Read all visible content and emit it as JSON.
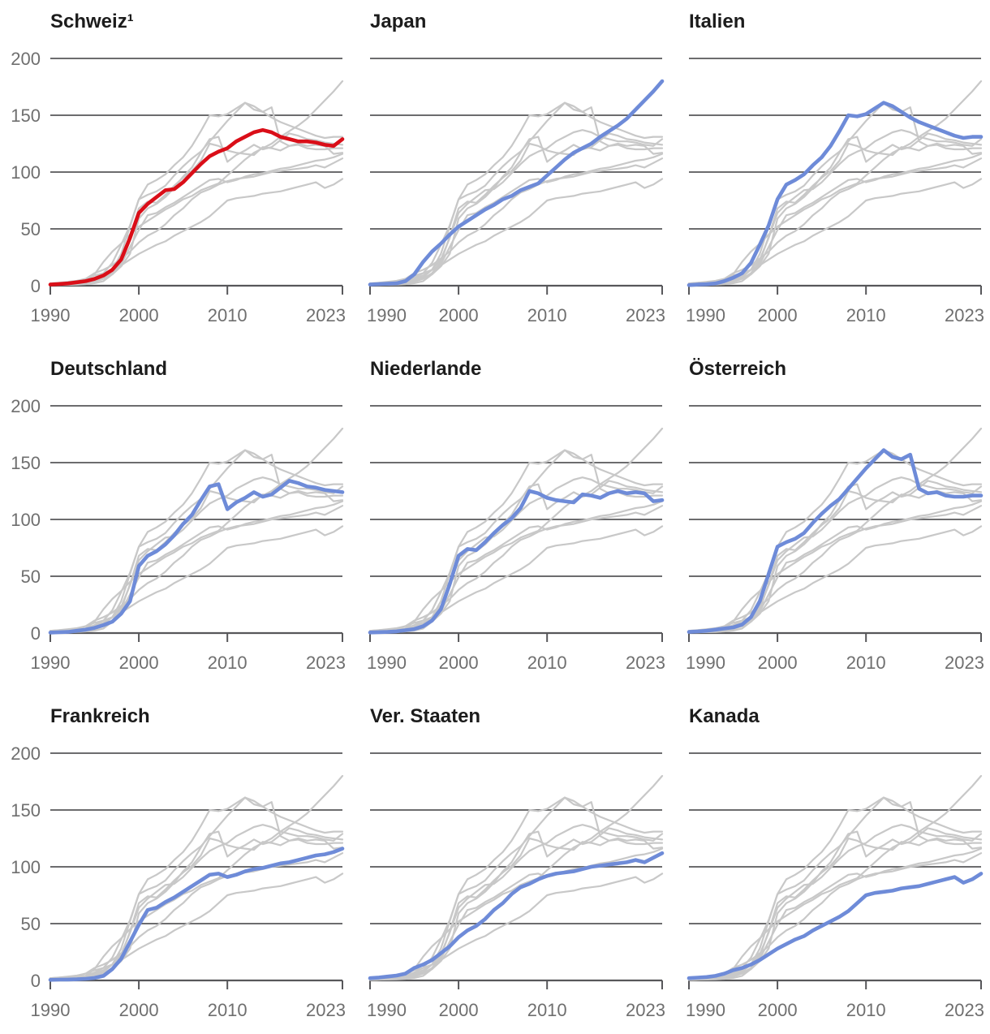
{
  "colors": {
    "highlight_red": "#da0e18",
    "highlight_blue": "#6e8bd8",
    "neighbor_gray": "#c8c8c8",
    "grid": "#57575a",
    "axis_label": "#6f6f6f",
    "title": "#1c1c1c",
    "background": "#ffffff"
  },
  "chart_data": {
    "type": "line",
    "layout": "small-multiples-3x3",
    "x_start": 1990,
    "x_end": 2023,
    "x_step": 1,
    "x_ticks": [
      1990,
      2000,
      2010,
      2023
    ],
    "ylim": [
      0,
      200
    ],
    "y_ticks": [
      0,
      50,
      100,
      150,
      200
    ],
    "grid": true,
    "legend": false,
    "panels": [
      {
        "title": "Schweiz¹",
        "highlight_id": "CH",
        "highlight_color": "red"
      },
      {
        "title": "Japan",
        "highlight_id": "JP",
        "highlight_color": "blue"
      },
      {
        "title": "Italien",
        "highlight_id": "IT",
        "highlight_color": "blue"
      },
      {
        "title": "Deutschland",
        "highlight_id": "DE",
        "highlight_color": "blue"
      },
      {
        "title": "Niederlande",
        "highlight_id": "NL",
        "highlight_color": "blue"
      },
      {
        "title": "Österreich",
        "highlight_id": "AT",
        "highlight_color": "blue"
      },
      {
        "title": "Frankreich",
        "highlight_id": "FR",
        "highlight_color": "blue"
      },
      {
        "title": "Ver. Staaten",
        "highlight_id": "US",
        "highlight_color": "blue"
      },
      {
        "title": "Kanada",
        "highlight_id": "CA",
        "highlight_color": "blue"
      }
    ],
    "series": [
      {
        "id": "CH",
        "label": "Schweiz",
        "values": [
          1,
          1.5,
          2,
          3,
          4,
          6,
          9,
          14,
          23,
          42,
          64,
          72,
          78,
          84,
          85,
          91,
          99,
          107,
          114,
          118,
          121,
          127,
          131,
          135,
          137,
          135,
          131,
          129,
          127,
          127,
          126,
          124,
          123,
          129
        ]
      },
      {
        "id": "JP",
        "label": "Japan",
        "values": [
          1,
          1.4,
          1.7,
          2.1,
          4,
          10,
          21,
          30,
          37,
          45,
          52,
          57,
          62,
          67,
          71,
          76,
          79,
          84,
          87,
          90,
          97,
          104,
          111,
          117,
          121,
          125,
          131,
          136,
          141,
          147,
          155,
          163,
          171,
          180
        ]
      },
      {
        "id": "IT",
        "label": "Italien",
        "values": [
          0.5,
          1,
          1.3,
          2,
          4,
          7,
          11,
          20,
          36,
          53,
          76,
          89,
          93,
          98,
          106,
          113,
          123,
          136,
          150,
          149,
          151,
          156,
          161,
          158,
          153,
          148,
          144,
          141,
          138,
          135,
          132,
          130,
          131,
          131
        ]
      },
      {
        "id": "DE",
        "label": "Deutschland",
        "values": [
          0.4,
          0.7,
          1,
          2,
          3,
          4.6,
          7,
          10,
          17,
          28,
          59,
          68,
          72,
          78,
          86,
          96,
          104,
          117,
          129,
          131,
          109,
          115,
          119,
          124,
          120,
          122,
          128,
          134,
          132,
          129,
          128,
          126,
          125,
          124
        ]
      },
      {
        "id": "NL",
        "label": "Niederlande",
        "values": [
          0.5,
          0.8,
          1,
          1.5,
          2.5,
          3.5,
          6,
          11,
          21,
          43,
          68,
          74,
          73,
          80,
          88,
          95,
          101,
          110,
          125,
          123,
          119,
          117,
          116,
          115,
          122,
          121,
          119,
          123,
          125,
          123,
          124,
          123,
          116,
          117
        ]
      },
      {
        "id": "AT",
        "label": "Österreich",
        "values": [
          1,
          1.4,
          2,
          3,
          4,
          5,
          7.5,
          14,
          28,
          52,
          76,
          80,
          83,
          88,
          97,
          105,
          112,
          118,
          127,
          136,
          145,
          153,
          161,
          155,
          153,
          157,
          127,
          123,
          124,
          121,
          120,
          120,
          121,
          121
        ]
      },
      {
        "id": "FR",
        "label": "Frankreich",
        "values": [
          0.5,
          0.7,
          0.8,
          1,
          1.4,
          2.2,
          4,
          10,
          19,
          34,
          49,
          62,
          64,
          69,
          73,
          78,
          83,
          88,
          93,
          94,
          91,
          93,
          96,
          98,
          99,
          101,
          103,
          104,
          106,
          108,
          110,
          111,
          113,
          116
        ]
      },
      {
        "id": "US",
        "label": "Ver. Staaten",
        "values": [
          2,
          2.6,
          3.4,
          4.3,
          6,
          11,
          14,
          18,
          24,
          30,
          38,
          44,
          48,
          54,
          62,
          68,
          76,
          82,
          85,
          89,
          92,
          94,
          95,
          96,
          98,
          100,
          101,
          102,
          103,
          104,
          106,
          104,
          108,
          112
        ]
      },
      {
        "id": "CA",
        "label": "Kanada",
        "values": [
          2,
          2.5,
          3,
          4,
          6,
          9,
          11,
          14,
          18,
          23,
          28,
          32,
          36,
          39,
          44,
          48,
          52,
          56,
          61,
          68,
          75,
          77,
          78,
          79,
          81,
          82,
          83,
          85,
          87,
          89,
          91,
          86,
          89,
          94
        ]
      }
    ]
  }
}
